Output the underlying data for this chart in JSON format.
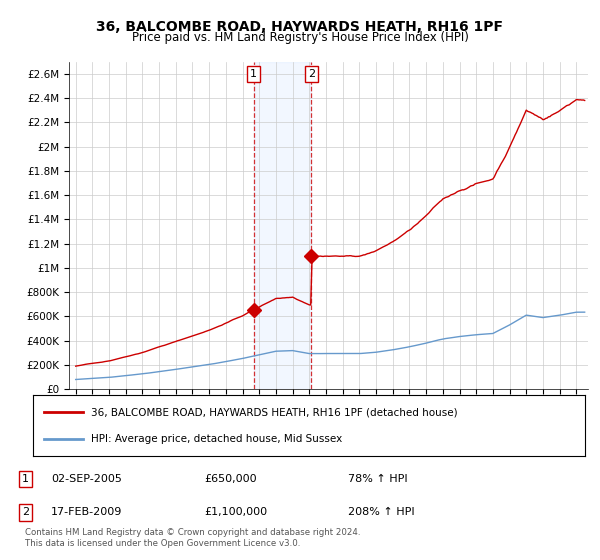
{
  "title": "36, BALCOMBE ROAD, HAYWARDS HEATH, RH16 1PF",
  "subtitle": "Price paid vs. HM Land Registry's House Price Index (HPI)",
  "legend_line1": "36, BALCOMBE ROAD, HAYWARDS HEATH, RH16 1PF (detached house)",
  "legend_line2": "HPI: Average price, detached house, Mid Sussex",
  "annotation1_label": "1",
  "annotation1_date": "02-SEP-2005",
  "annotation1_price": "£650,000",
  "annotation1_hpi": "78% ↑ HPI",
  "annotation2_label": "2",
  "annotation2_date": "17-FEB-2009",
  "annotation2_price": "£1,100,000",
  "annotation2_hpi": "208% ↑ HPI",
  "footnote": "Contains HM Land Registry data © Crown copyright and database right 2024.\nThis data is licensed under the Open Government Licence v3.0.",
  "transaction1_year": 2005.67,
  "transaction1_value": 650000,
  "transaction2_year": 2009.12,
  "transaction2_value": 1100000,
  "hpi_color": "#6699cc",
  "property_color": "#cc0000",
  "ylim_max": 2700000,
  "yticks": [
    0,
    200000,
    400000,
    600000,
    800000,
    1000000,
    1200000,
    1400000,
    1600000,
    1800000,
    2000000,
    2200000,
    2400000,
    2600000
  ],
  "ytick_labels": [
    "£0",
    "£200K",
    "£400K",
    "£600K",
    "£800K",
    "£1M",
    "£1.2M",
    "£1.4M",
    "£1.6M",
    "£1.8M",
    "£2M",
    "£2.2M",
    "£2.4M",
    "£2.6M"
  ]
}
